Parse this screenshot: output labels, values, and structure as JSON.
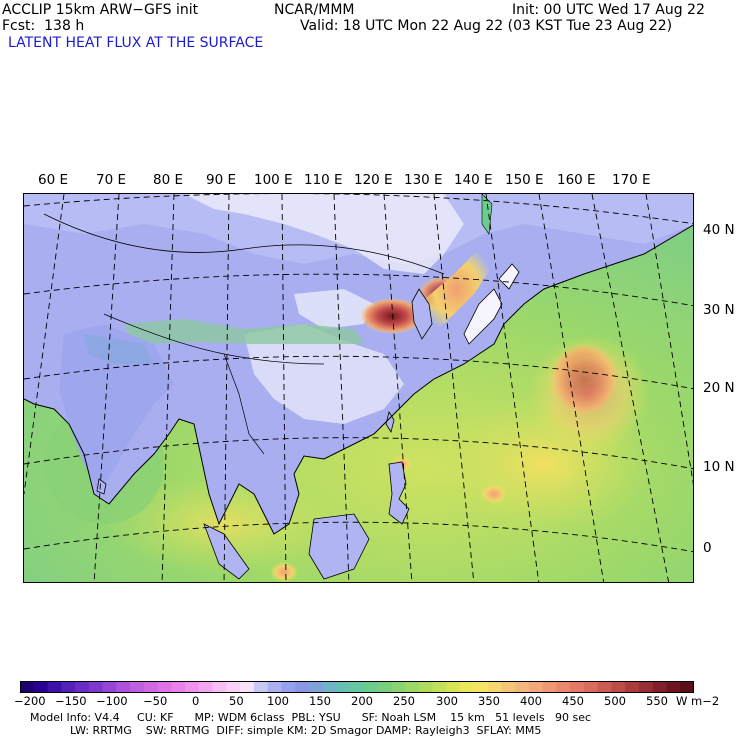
{
  "header": {
    "model_line": "ACCLIP 15km ARW−GFS init",
    "forecast_line": "Fcst:  138 h",
    "center": "NCAR/MMM",
    "init": "Init: 00 UTC Wed 17 Aug 22",
    "valid": "Valid: 18 UTC Mon 22 Aug 22 (03 KST Tue 23 Aug 22)",
    "field_title": "LATENT HEAT FLUX AT THE SURFACE"
  },
  "map": {
    "lon_labels": [
      "60 E",
      "70 E",
      "80 E",
      "90 E",
      "100 E",
      "110 E",
      "120 E",
      "130 E",
      "140 E",
      "150 E",
      "160 E",
      "170 E"
    ],
    "lat_labels": [
      "40 N",
      "30 N",
      "20 N",
      "10 N",
      "0"
    ]
  },
  "colorbar": {
    "ticks": [
      "−200",
      "−150",
      "−100",
      "−50",
      "0",
      "50",
      "100",
      "150",
      "200",
      "250",
      "300",
      "350",
      "400",
      "450",
      "500",
      "550"
    ],
    "unit": "W m−2",
    "colors": [
      "#1a0070",
      "#2a0090",
      "#3d10a8",
      "#5520b8",
      "#6a2cc4",
      "#7f38cc",
      "#9545d4",
      "#ac52dc",
      "#c05ee0",
      "#d068e4",
      "#de72e6",
      "#ea80ea",
      "#f192ee",
      "#f5a6f2",
      "#f8bcf6",
      "#fad0fa",
      "#f9e2fb",
      "#c8c8f4",
      "#aab0f0",
      "#96a0ec",
      "#8a98e4",
      "#7ca4d8",
      "#70b4c8",
      "#68c0b4",
      "#66c8a0",
      "#6ccc8c",
      "#78d07c",
      "#88d470",
      "#9cd866",
      "#b0dc5e",
      "#c4e05a",
      "#d8e458",
      "#ece85c",
      "#f6e464",
      "#f8d670",
      "#f6c678",
      "#f4b87c",
      "#f2a87a",
      "#f09874",
      "#ec886c",
      "#e47a64",
      "#da6c5c",
      "#cc5c52",
      "#bc4c48",
      "#aa3c3e",
      "#962e34",
      "#82202a",
      "#6e1620",
      "#5c0e18"
    ]
  },
  "info": {
    "line1": "Model Info: V4.4     CU: KF      MP: WDM 6class  PBL: YSU      SF: Noah LSM    15 km   51 levels   90 sec",
    "line2": "LW: RRTMG    SW: RRTMG  DIFF: simple KM: 2D Smagor DAMP: Rayleigh3  SFLAY: MM5"
  }
}
